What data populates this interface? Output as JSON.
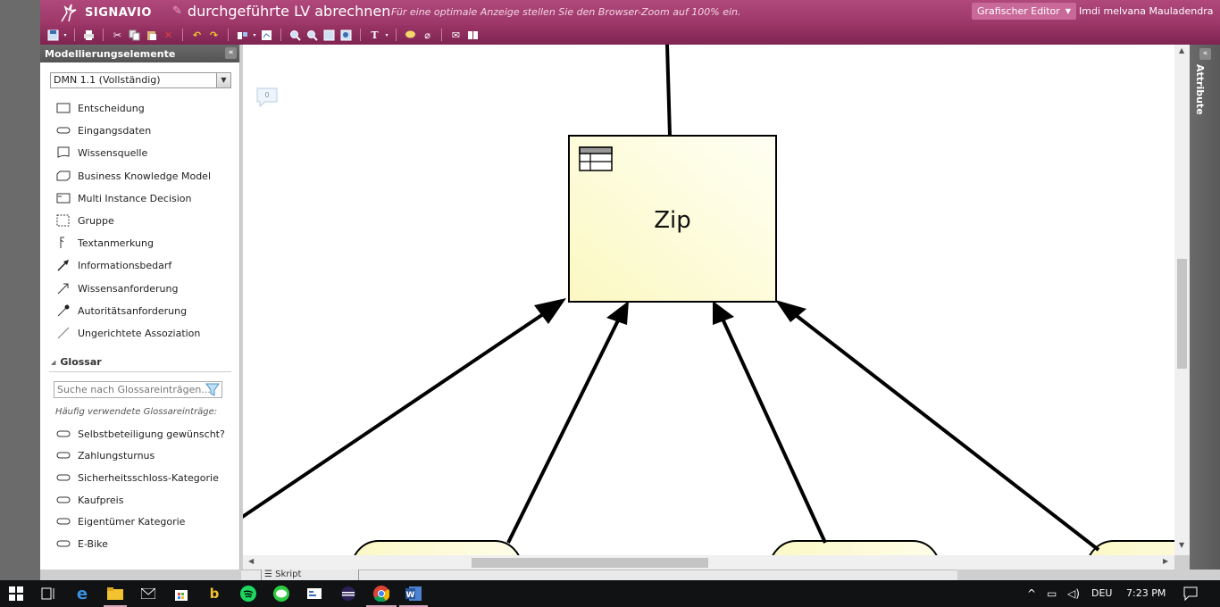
{
  "header": {
    "logo_text": "SIGNAVIO",
    "doc_title": "durchgeführte LV abrechnen",
    "zoom_hint": "Für eine optimale Anzeige stellen Sie den Browser-Zoom auf 100% ein.",
    "editor_label": "Grafischer Editor",
    "user": "Imdi melvana Mauladendra"
  },
  "sidebar": {
    "title": "Modellierungselemente",
    "notation": "DMN 1.1 (Vollständig)",
    "elements": [
      {
        "label": "Entscheidung",
        "icon": "rectangle-icon"
      },
      {
        "label": "Eingangsdaten",
        "icon": "oval-icon"
      },
      {
        "label": "Wissensquelle",
        "icon": "document-shape-icon"
      },
      {
        "label": "Business Knowledge Model",
        "icon": "clipped-rectangle-icon"
      },
      {
        "label": "Multi Instance Decision",
        "icon": "multi-instance-icon"
      },
      {
        "label": "Gruppe",
        "icon": "dashed-rectangle-icon"
      },
      {
        "label": "Textanmerkung",
        "icon": "annotation-icon"
      },
      {
        "label": "Informationsbedarf",
        "icon": "solid-arrow-icon"
      },
      {
        "label": "Wissensanforderung",
        "icon": "open-arrow-icon"
      },
      {
        "label": "Autoritätsanforderung",
        "icon": "dot-arrow-icon"
      },
      {
        "label": "Ungerichtete Assoziation",
        "icon": "line-icon"
      }
    ],
    "glossary": {
      "title": "Glossar",
      "search_placeholder": "Suche nach Glossareinträgen...",
      "frequent_label": "Häufig verwendete Glossareinträge:",
      "items": [
        "Selbstbeteiligung gewünscht?",
        "Zahlungsturnus",
        "Sicherheitsschloss-Kategorie",
        "Kaufpreis",
        "Eigentümer Kategorie",
        "E-Bike"
      ]
    }
  },
  "canvas": {
    "comment_count": "0",
    "decision_label": "Zip"
  },
  "attributes_panel": {
    "label": "Attribute"
  },
  "bottom": {
    "script_tab": "Skript"
  },
  "taskbar": {
    "language": "DEU",
    "time": "7:23 PM"
  },
  "colors": {
    "header": "#a84274",
    "decision_fill": "#fdfcd8",
    "sidebar_header": "#606060"
  }
}
